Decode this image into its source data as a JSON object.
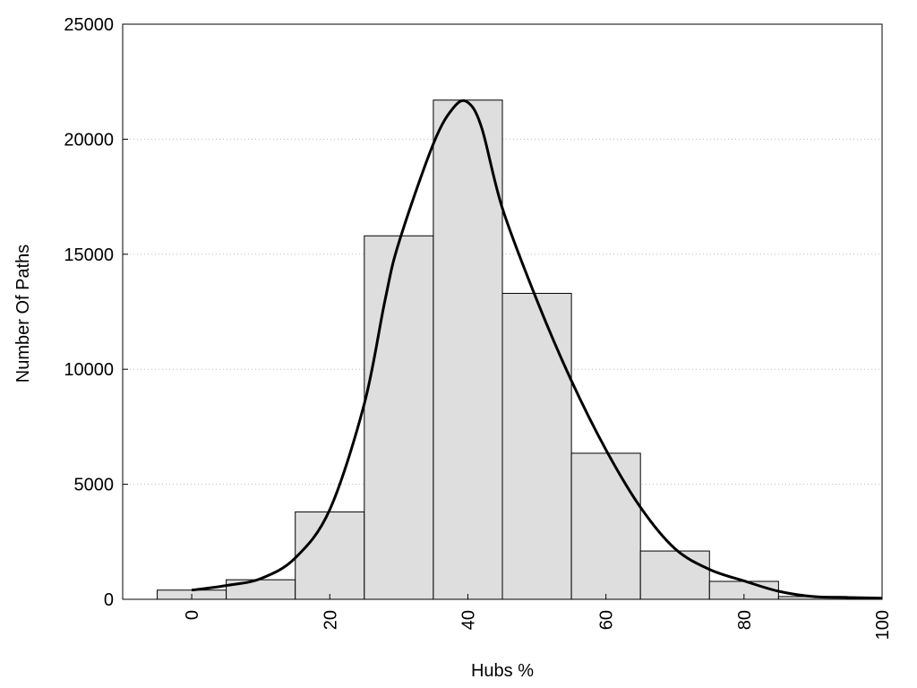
{
  "chart_data": {
    "type": "bar",
    "xlabel": "Hubs %",
    "ylabel": "Number Of Paths",
    "xlim": [
      -10,
      100
    ],
    "ylim": [
      0,
      25000
    ],
    "x_ticks": [
      0,
      20,
      40,
      60,
      80,
      100
    ],
    "y_ticks": [
      0,
      5000,
      10000,
      15000,
      20000,
      25000
    ],
    "grid": "horizontal dotted",
    "legend": "none",
    "bin_width": 10,
    "bins": [
      {
        "center": 0,
        "value": 400
      },
      {
        "center": 10,
        "value": 850
      },
      {
        "center": 20,
        "value": 3800
      },
      {
        "center": 30,
        "value": 15800
      },
      {
        "center": 40,
        "value": 21700
      },
      {
        "center": 50,
        "value": 13300
      },
      {
        "center": 60,
        "value": 6350
      },
      {
        "center": 70,
        "value": 2100
      },
      {
        "center": 80,
        "value": 780
      },
      {
        "center": 90,
        "value": 120
      }
    ],
    "curve": {
      "x": [
        0,
        5,
        10,
        15,
        20,
        25,
        28,
        30,
        35,
        38,
        40,
        42,
        45,
        50,
        55,
        60,
        65,
        70,
        75,
        80,
        85,
        90,
        95,
        100
      ],
      "y": [
        400,
        600,
        900,
        1800,
        3900,
        8500,
        13000,
        15500,
        19800,
        21400,
        21600,
        20500,
        17000,
        13000,
        9500,
        6500,
        4000,
        2200,
        1300,
        800,
        350,
        120,
        80,
        50
      ]
    },
    "colors": {
      "bar_fill": "#dedede",
      "bar_stroke": "#000000",
      "curve": "#000000",
      "grid": "#bbbbbb"
    }
  }
}
